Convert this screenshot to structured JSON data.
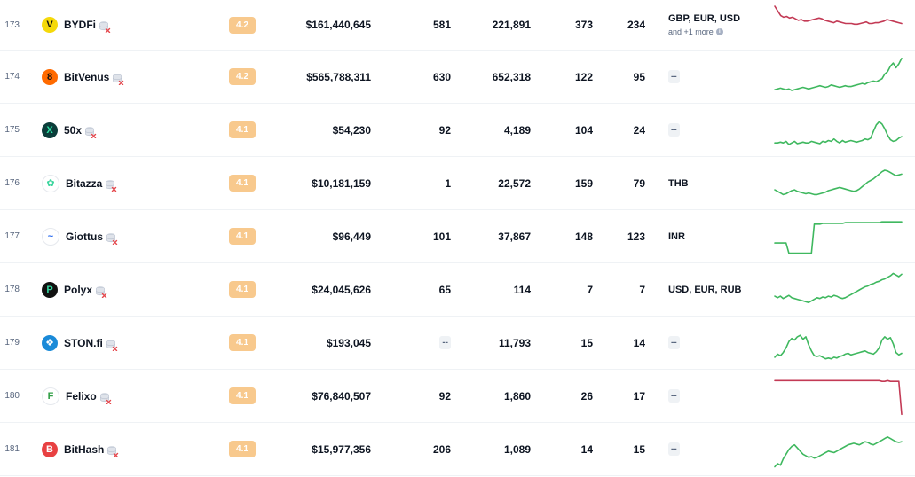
{
  "colors": {
    "up": "#3fb85f",
    "down": "#c33a55",
    "score_bg": "#f8c98d"
  },
  "rows": [
    {
      "rank": "173",
      "name": "BYDFi",
      "logo": "V",
      "logo_bg": "#f5d90a",
      "logo_fg": "#111111",
      "score": "4.2",
      "volume": "$161,440,645",
      "markets": "581",
      "markets_dash": false,
      "visits": "221,891",
      "coins": "373",
      "pairs": "234",
      "fiat": "GBP, EUR, USD",
      "fiat_more": "and +1 more",
      "fiat_dash": false,
      "trend": "down",
      "spark": [
        52,
        46,
        40,
        38,
        39,
        37,
        38,
        36,
        34,
        35,
        33,
        33,
        34,
        35,
        36,
        37,
        36,
        34,
        33,
        32,
        31,
        33,
        32,
        31,
        30,
        30,
        30,
        29,
        29,
        30,
        31,
        32,
        30,
        30,
        31,
        31,
        32,
        33,
        35,
        34,
        33,
        32,
        31,
        30
      ]
    },
    {
      "rank": "174",
      "name": "BitVenus",
      "logo": "8",
      "logo_bg": "#ff6a00",
      "logo_fg": "#111111",
      "score": "4.2",
      "volume": "$565,788,311",
      "markets": "630",
      "markets_dash": false,
      "visits": "652,318",
      "coins": "122",
      "pairs": "95",
      "fiat": "",
      "fiat_more": "",
      "fiat_dash": true,
      "trend": "up",
      "spark": [
        10,
        11,
        12,
        11,
        10,
        11,
        9,
        10,
        11,
        12,
        13,
        12,
        11,
        12,
        13,
        14,
        15,
        14,
        13,
        14,
        16,
        15,
        14,
        13,
        14,
        15,
        14,
        14,
        15,
        16,
        17,
        18,
        17,
        19,
        20,
        21,
        20,
        22,
        24,
        30,
        33,
        40,
        44,
        38,
        43,
        50
      ]
    },
    {
      "rank": "175",
      "name": "50x",
      "logo": "X",
      "logo_bg": "#0b3d3a",
      "logo_fg": "#2ee6a6",
      "score": "4.1",
      "volume": "$54,230",
      "markets": "92",
      "markets_dash": false,
      "visits": "4,189",
      "coins": "104",
      "pairs": "24",
      "fiat": "",
      "fiat_more": "",
      "fiat_dash": true,
      "trend": "up",
      "spark": [
        10,
        10,
        11,
        10,
        12,
        8,
        10,
        12,
        9,
        10,
        11,
        10,
        10,
        12,
        11,
        10,
        9,
        12,
        11,
        13,
        12,
        15,
        12,
        10,
        13,
        11,
        12,
        13,
        12,
        11,
        12,
        13,
        15,
        14,
        16,
        25,
        33,
        37,
        34,
        28,
        20,
        14,
        12,
        13,
        16,
        18
      ]
    },
    {
      "rank": "176",
      "name": "Bitazza",
      "logo": "✿",
      "logo_bg": "#ffffff",
      "logo_fg": "#3fd6a0",
      "score": "4.1",
      "volume": "$10,181,159",
      "markets": "1",
      "markets_dash": false,
      "visits": "22,572",
      "coins": "159",
      "pairs": "79",
      "fiat": "THB",
      "fiat_more": "",
      "fiat_dash": false,
      "trend": "up",
      "spark": [
        18,
        16,
        14,
        12,
        13,
        15,
        17,
        18,
        16,
        15,
        14,
        13,
        14,
        13,
        12,
        12,
        13,
        14,
        15,
        17,
        18,
        19,
        20,
        21,
        20,
        19,
        18,
        17,
        16,
        17,
        19,
        22,
        25,
        28,
        30,
        32,
        35,
        38,
        41,
        43,
        42,
        40,
        38,
        36,
        37,
        38
      ]
    },
    {
      "rank": "177",
      "name": "Giottus",
      "logo": "~",
      "logo_bg": "#ffffff",
      "logo_fg": "#2b6cf0",
      "score": "4.1",
      "volume": "$96,449",
      "markets": "101",
      "markets_dash": false,
      "visits": "37,867",
      "coins": "148",
      "pairs": "123",
      "fiat": "INR",
      "fiat_more": "",
      "fiat_dash": false,
      "trend": "up",
      "spark": [
        18,
        18,
        18,
        18,
        18,
        5,
        5,
        5,
        5,
        5,
        5,
        5,
        5,
        5,
        42,
        42,
        42,
        43,
        43,
        43,
        43,
        43,
        43,
        43,
        43,
        44,
        44,
        44,
        44,
        44,
        44,
        44,
        44,
        44,
        44,
        44,
        44,
        44,
        45,
        45,
        45,
        45,
        45,
        45,
        45,
        45
      ]
    },
    {
      "rank": "178",
      "name": "Polyx",
      "logo": "P",
      "logo_bg": "#111111",
      "logo_fg": "#35d6a0",
      "score": "4.1",
      "volume": "$24,045,626",
      "markets": "65",
      "markets_dash": false,
      "visits": "114",
      "coins": "7",
      "pairs": "7",
      "fiat": "USD, EUR, RUB",
      "fiat_more": "",
      "fiat_dash": false,
      "trend": "up",
      "spark": [
        18,
        16,
        18,
        15,
        17,
        19,
        16,
        15,
        14,
        13,
        12,
        11,
        10,
        12,
        14,
        16,
        15,
        17,
        16,
        18,
        17,
        19,
        18,
        16,
        15,
        16,
        18,
        20,
        22,
        24,
        26,
        28,
        30,
        31,
        33,
        34,
        36,
        37,
        39,
        40,
        42,
        44,
        47,
        45,
        43,
        46
      ]
    },
    {
      "rank": "179",
      "name": "STON.fi",
      "logo": "❖",
      "logo_bg": "#1a8ad8",
      "logo_fg": "#ffffff",
      "score": "4.1",
      "volume": "$193,045",
      "markets": "",
      "markets_dash": true,
      "visits": "11,793",
      "coins": "15",
      "pairs": "14",
      "fiat": "",
      "fiat_more": "",
      "fiat_dash": true,
      "trend": "up",
      "spark": [
        8,
        12,
        10,
        14,
        20,
        28,
        32,
        30,
        34,
        36,
        31,
        34,
        24,
        16,
        10,
        9,
        10,
        8,
        6,
        7,
        6,
        8,
        7,
        9,
        10,
        12,
        13,
        11,
        12,
        13,
        14,
        15,
        16,
        14,
        13,
        12,
        15,
        20,
        30,
        34,
        31,
        33,
        25,
        14,
        11,
        13
      ]
    },
    {
      "rank": "180",
      "name": "Felixo",
      "logo": "F",
      "logo_bg": "#ffffff",
      "logo_fg": "#2f9e44",
      "score": "4.1",
      "volume": "$76,840,507",
      "markets": "92",
      "markets_dash": false,
      "visits": "1,860",
      "coins": "26",
      "pairs": "17",
      "fiat": "",
      "fiat_more": "",
      "fiat_dash": true,
      "trend": "down",
      "spark": [
        46,
        46,
        46,
        46,
        46,
        46,
        46,
        46,
        46,
        46,
        46,
        46,
        46,
        46,
        46,
        46,
        46,
        46,
        46,
        46,
        46,
        46,
        46,
        46,
        46,
        46,
        46,
        46,
        46,
        46,
        46,
        46,
        46,
        46,
        46,
        46,
        46,
        46,
        45,
        45,
        46,
        45,
        45,
        45,
        45,
        3
      ]
    },
    {
      "rank": "181",
      "name": "BitHash",
      "logo": "B",
      "logo_bg": "#e84142",
      "logo_fg": "#ffffff",
      "score": "4.1",
      "volume": "$15,977,356",
      "markets": "206",
      "markets_dash": false,
      "visits": "1,089",
      "coins": "14",
      "pairs": "15",
      "fiat": "",
      "fiat_more": "",
      "fiat_dash": true,
      "trend": "up",
      "spark": [
        4,
        8,
        6,
        14,
        20,
        26,
        30,
        32,
        28,
        24,
        20,
        18,
        16,
        17,
        15,
        16,
        18,
        20,
        22,
        24,
        23,
        22,
        24,
        26,
        28,
        30,
        32,
        33,
        34,
        33,
        32,
        34,
        36,
        35,
        33,
        32,
        34,
        36,
        38,
        40,
        42,
        40,
        38,
        36,
        35,
        36
      ]
    }
  ]
}
